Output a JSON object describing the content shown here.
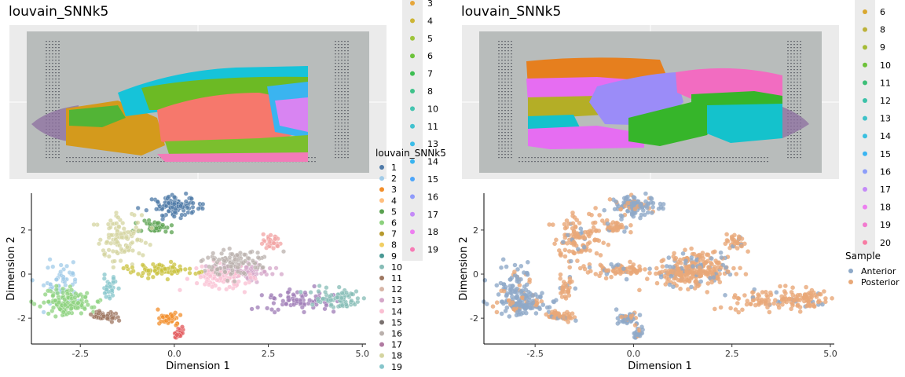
{
  "chart_data": [
    {
      "type": "spatial_image",
      "title": "louvain_SNNk5",
      "legend_labels": [
        "3",
        "4",
        "5",
        "6",
        "7",
        "8",
        "10",
        "11",
        "13",
        "14",
        "15",
        "16",
        "17",
        "18",
        "19"
      ],
      "legend_colors": [
        "#E6A63B",
        "#CDB534",
        "#9DC43A",
        "#6CC23A",
        "#3DBE52",
        "#3FC28A",
        "#45C4B0",
        "#42C2CF",
        "#3BBDE8",
        "#3AB4F0",
        "#4DA6FA",
        "#8F9BFB",
        "#C48AF8",
        "#ED7FF0",
        "#F77BB5"
      ],
      "regions": [
        {
          "cluster": "3",
          "color": "#D49A1C"
        },
        {
          "cluster": "5",
          "color": "#6CBA24"
        },
        {
          "cluster": "11",
          "color": "#16C3D9"
        },
        {
          "cluster": "16",
          "color": "#E46BF0"
        },
        {
          "cluster": "1",
          "color": "#F6786C"
        }
      ]
    },
    {
      "type": "scatter",
      "xlabel": "Dimension 1",
      "ylabel": "Dimension 2",
      "xticks": [
        "-2.5",
        "0.0",
        "2.5",
        "5.0"
      ],
      "xtick_values": [
        -2.5,
        0,
        2.5,
        5
      ],
      "yticks": [
        "-2",
        "0",
        "2"
      ],
      "ytick_values": [
        -2,
        0,
        2
      ],
      "xlim": [
        -3.8,
        5.1
      ],
      "ylim": [
        -3.1,
        3.6
      ],
      "legend_title": "louvain_SNNk5",
      "legend_labels": [
        "1",
        "2",
        "3",
        "4",
        "5",
        "6",
        "7",
        "8",
        "9",
        "10",
        "11",
        "12",
        "13",
        "14",
        "15",
        "16",
        "17",
        "18",
        "19"
      ],
      "legend_colors": [
        "#4E79A7",
        "#A0CBE8",
        "#F28E2B",
        "#FFBE7D",
        "#59A14F",
        "#8CD17D",
        "#B6992D",
        "#F1CE63",
        "#499894",
        "#86BCB6",
        "#9D7660",
        "#D7B5A6",
        "#D4A6C8",
        "#FABFD2",
        "#79706E",
        "#BAB0AC",
        "#B07AA1",
        "#D4D4A0",
        "#86C5CB"
      ],
      "clusters": [
        {
          "label": "1",
          "color": "#4E79A7",
          "cx": 0.05,
          "cy": 3.1,
          "sx": 0.3,
          "sy": 0.22,
          "n": 120
        },
        {
          "label": "2",
          "color": "#A0CBE8",
          "cx": -3.0,
          "cy": -0.3,
          "sx": 0.25,
          "sy": 0.5,
          "n": 60
        },
        {
          "label": "3",
          "color": "#F28E2B",
          "cx": -0.15,
          "cy": -2.0,
          "sx": 0.15,
          "sy": 0.15,
          "n": 40
        },
        {
          "label": "5",
          "color": "#59A14F",
          "cx": -0.5,
          "cy": 2.1,
          "sx": 0.25,
          "sy": 0.15,
          "n": 40
        },
        {
          "label": "6",
          "color": "#8CD17D",
          "cx": -2.8,
          "cy": -1.3,
          "sx": 0.3,
          "sy": 0.3,
          "n": 140
        },
        {
          "label": "7",
          "color": "#E15759",
          "cx": 0.1,
          "cy": -2.7,
          "sx": 0.06,
          "sy": 0.12,
          "n": 20
        },
        {
          "label": "9",
          "color": "#9E7BB5",
          "cx": 3.3,
          "cy": -1.2,
          "sx": 0.5,
          "sy": 0.25,
          "n": 70
        },
        {
          "label": "10",
          "color": "#86BCB6",
          "cx": 4.3,
          "cy": -1.1,
          "sx": 0.3,
          "sy": 0.25,
          "n": 70
        },
        {
          "label": "11",
          "color": "#9D7660",
          "cx": -1.9,
          "cy": -1.9,
          "sx": 0.2,
          "sy": 0.12,
          "n": 50
        },
        {
          "label": "13",
          "color": "#D4A6C8",
          "cx": 1.8,
          "cy": 0.1,
          "sx": 0.4,
          "sy": 0.2,
          "n": 90
        },
        {
          "label": "14",
          "color": "#FABFD2",
          "cx": 1.2,
          "cy": -0.1,
          "sx": 0.4,
          "sy": 0.3,
          "n": 90
        },
        {
          "label": "16",
          "color": "#BAB0AC",
          "cx": 1.6,
          "cy": 0.5,
          "sx": 0.4,
          "sy": 0.3,
          "n": 100
        },
        {
          "label": "17",
          "color": "#F1A3A3",
          "cx": 2.6,
          "cy": 1.4,
          "sx": 0.12,
          "sy": 0.2,
          "n": 30
        },
        {
          "label": "18",
          "color": "#D4D4A0",
          "cx": -1.4,
          "cy": 1.6,
          "sx": 0.3,
          "sy": 0.5,
          "n": 110
        },
        {
          "label": "19",
          "color": "#86C5CB",
          "cx": -1.7,
          "cy": -0.6,
          "sx": 0.1,
          "sy": 0.3,
          "n": 30
        },
        {
          "label": "8",
          "color": "#C9C23E",
          "cx": -0.3,
          "cy": 0.2,
          "sx": 0.45,
          "sy": 0.15,
          "n": 80
        }
      ]
    },
    {
      "type": "spatial_image",
      "title": "louvain_SNNk5",
      "legend_labels": [
        "6",
        "8",
        "9",
        "10",
        "11",
        "12",
        "13",
        "14",
        "15",
        "16",
        "17",
        "18",
        "19",
        "20"
      ],
      "legend_colors": [
        "#D9A72E",
        "#BDB23A",
        "#A5BB36",
        "#6DC23A",
        "#3CBF77",
        "#3BC1A8",
        "#3EC2C8",
        "#3AC0E0",
        "#3AB5F2",
        "#8C9DF9",
        "#C48AF8",
        "#ED7FF0",
        "#F27BCF",
        "#F77BA3"
      ],
      "regions": [
        {
          "cluster": "6",
          "color": "#E67F1E"
        },
        {
          "cluster": "9",
          "color": "#B4AE26"
        },
        {
          "cluster": "16",
          "color": "#9B8CF8"
        },
        {
          "cluster": "19",
          "color": "#F26CC1"
        },
        {
          "cluster": "10",
          "color": "#36B52A"
        },
        {
          "cluster": "13",
          "color": "#14C2CC"
        },
        {
          "cluster": "18",
          "color": "#E66DF2"
        }
      ]
    },
    {
      "type": "scatter",
      "xlabel": "Dimension 1",
      "ylabel": "Dimension 2",
      "xticks": [
        "-2.5",
        "0.0",
        "2.5",
        "5.0"
      ],
      "xtick_values": [
        -2.5,
        0,
        2.5,
        5
      ],
      "yticks": [
        "-2",
        "0",
        "2"
      ],
      "ytick_values": [
        -2,
        0,
        2
      ],
      "xlim": [
        -3.8,
        5.1
      ],
      "ylim": [
        -3.1,
        3.6
      ],
      "legend_title": "Sample",
      "legend_labels": [
        "Anterior",
        "Posterior"
      ],
      "legend_colors": [
        "#8EA9C8",
        "#E8A878"
      ]
    }
  ]
}
